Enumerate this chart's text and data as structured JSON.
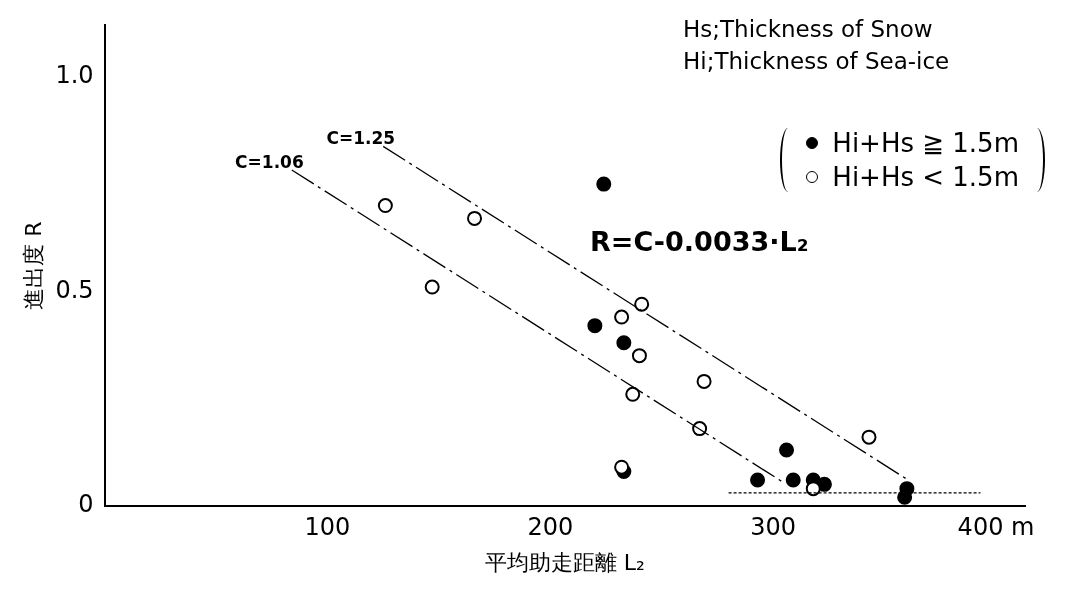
{
  "chart_data": {
    "type": "scatter",
    "xlabel": "平均助走距離 L₂",
    "ylabel": "進出度 R",
    "xlim": [
      0,
      413
    ],
    "ylim": [
      0,
      1.12
    ],
    "xticks": [
      100,
      200,
      300,
      {
        "value": 400,
        "label": "400 m"
      }
    ],
    "yticks": [
      0,
      0.5,
      {
        "value": 1.0,
        "label": "1.0"
      }
    ],
    "grid": false,
    "legend": "top right",
    "annotations": [
      "Hs;Thickness of Snow",
      "Hi;Thickness of Sea-ice",
      "R=C-0.0033·L₂",
      {
        "text": "C=1.25",
        "x": 125,
        "y": 0.838
      },
      {
        "text": "C=1.06",
        "x": 84,
        "y": 0.783
      }
    ],
    "series": [
      {
        "name": "Hi+Hs ≧ 1.5m",
        "type": "scatter",
        "marker": "circle",
        "color": "#000000",
        "x": [
          224,
          220,
          233,
          233,
          306,
          293,
          309,
          318,
          323,
          360,
          359
        ],
        "values": [
          0.75,
          0.42,
          0.38,
          0.08,
          0.13,
          0.06,
          0.06,
          0.06,
          0.05,
          0.04,
          0.02
        ]
      },
      {
        "name": "Hi+Hs < 1.5m",
        "type": "scatter",
        "marker": "circle",
        "color": "#ffffff",
        "x": [
          126,
          166,
          147,
          241,
          232,
          240,
          269,
          237,
          267,
          232,
          318,
          343
        ],
        "values": [
          0.7,
          0.67,
          0.51,
          0.47,
          0.44,
          0.35,
          0.29,
          0.26,
          0.18,
          0.09,
          0.04,
          0.16
        ]
      },
      {
        "type": "line",
        "marker": "none",
        "color": "#000000",
        "line_style": "dashed",
        "x": [
          125,
          360
        ],
        "values": [
          0.838,
          0.062
        ]
      },
      {
        "type": "line",
        "marker": "none",
        "color": "#000000",
        "line_style": "dashed",
        "x": [
          84,
          305
        ],
        "values": [
          0.783,
          0.053
        ]
      },
      {
        "type": "line",
        "marker": "none",
        "color": "#000000",
        "line_style": "dotted",
        "x": [
          280,
          393
        ],
        "values": [
          0.03,
          0.03
        ]
      }
    ]
  }
}
